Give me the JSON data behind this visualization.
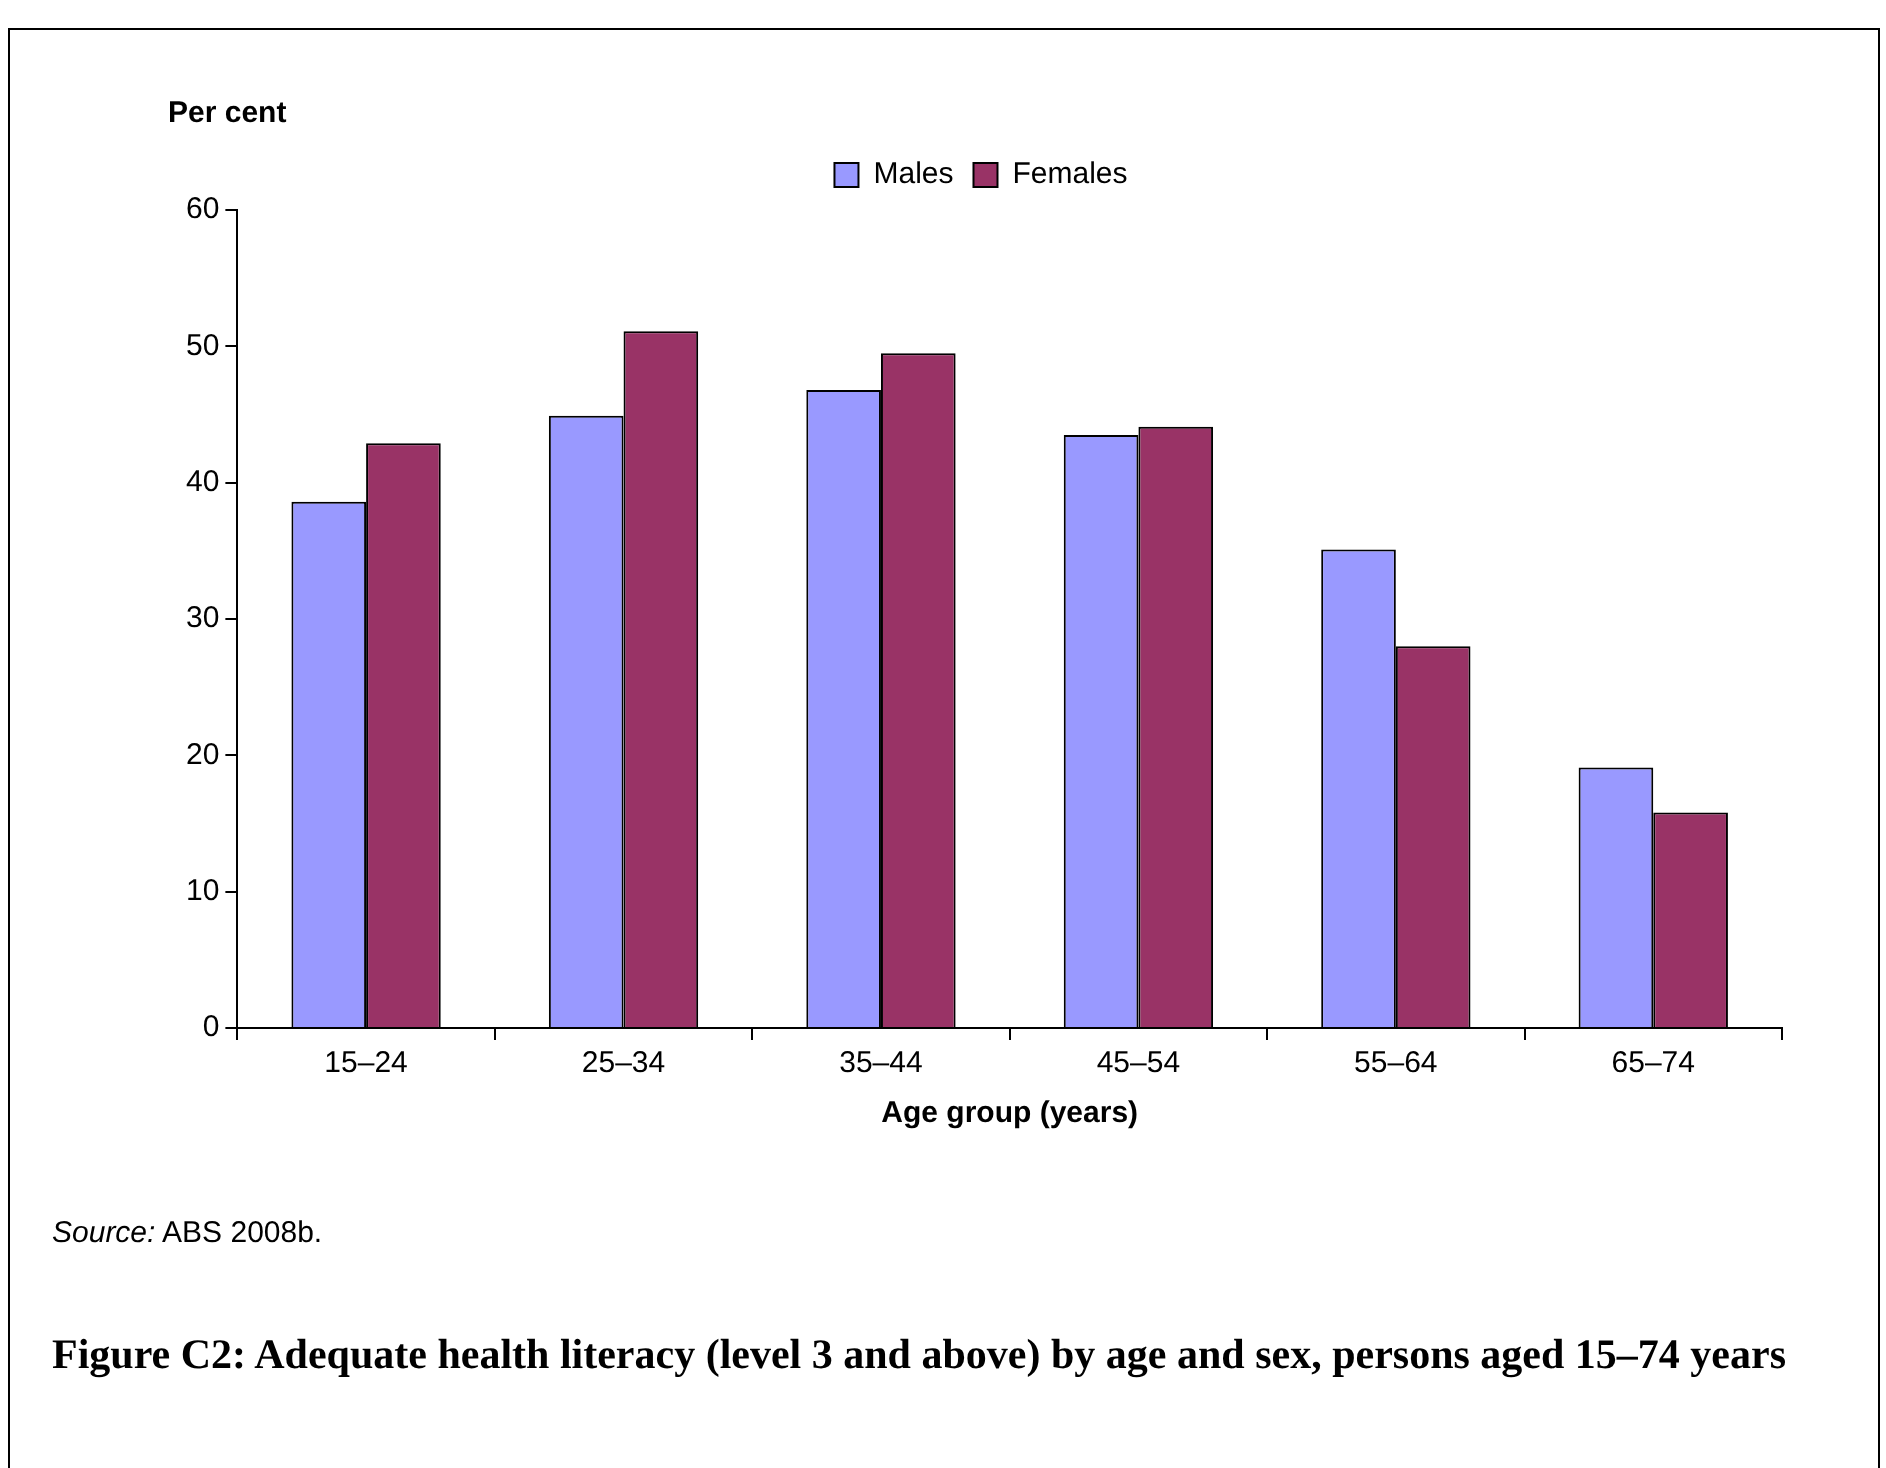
{
  "chart_data": {
    "type": "bar",
    "title": "Figure C2: Adequate health literacy (level 3 and above) by age and sex, persons aged 15–74 years",
    "ylabel": "Per cent",
    "xlabel": "Age group (years)",
    "categories": [
      "15–24",
      "25–34",
      "35–44",
      "45–54",
      "55–64",
      "65–74"
    ],
    "series": [
      {
        "name": "Males",
        "color": "#9999ff",
        "values": [
          38.6,
          44.9,
          46.8,
          43.5,
          35.1,
          19.1
        ]
      },
      {
        "name": "Females",
        "color": "#993366",
        "values": [
          42.9,
          51.1,
          49.5,
          44.1,
          28.0,
          15.8
        ]
      }
    ],
    "ylim": [
      0,
      60
    ],
    "yticks": [
      0,
      10,
      20,
      30,
      40,
      50,
      60
    ],
    "grid": false,
    "legend": "top",
    "annotations": [
      "Source: ABS 2008b."
    ]
  }
}
